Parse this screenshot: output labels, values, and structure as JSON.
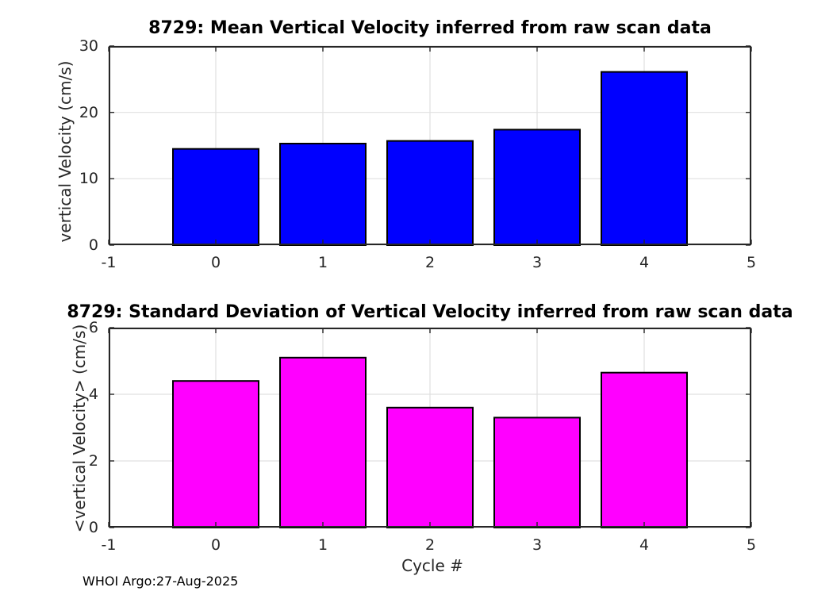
{
  "figure": {
    "xlabel": "Cycle #",
    "footer": "WHOI Argo:27-Aug-2025"
  },
  "style": {
    "grid_color": "#e0e0e0",
    "axis_color": "#262626",
    "tick_color": "#262626",
    "background": "#ffffff"
  },
  "chart_data": [
    {
      "id": "mean",
      "type": "bar",
      "title": "8729: Mean Vertical Velocity inferred from raw scan data",
      "ylabel": "vertical Velocity (cm/s)",
      "xlabel": "",
      "categories": [
        0,
        1,
        2,
        3,
        4
      ],
      "values": [
        14.5,
        15.3,
        15.7,
        17.4,
        26.1
      ],
      "bar_fill": "#0000ff",
      "bar_edge": "#000000",
      "bar_width": 0.8,
      "xlim": [
        -1,
        5
      ],
      "ylim": [
        0,
        30
      ],
      "xticks": [
        -1,
        0,
        1,
        2,
        3,
        4,
        5
      ],
      "yticks": [
        0,
        10,
        20,
        30
      ],
      "grid": true,
      "legend": "none"
    },
    {
      "id": "std",
      "type": "bar",
      "title": "8729: Standard Deviation of Vertical Velocity inferred from raw scan data",
      "ylabel": "<vertical Velocity> (cm/s)",
      "xlabel": "Cycle #",
      "categories": [
        0,
        1,
        2,
        3,
        4
      ],
      "values": [
        4.4,
        5.1,
        3.6,
        3.3,
        4.65
      ],
      "bar_fill": "#ff00ff",
      "bar_edge": "#000000",
      "bar_width": 0.8,
      "xlim": [
        -1,
        5
      ],
      "ylim": [
        0,
        6
      ],
      "xticks": [
        -1,
        0,
        1,
        2,
        3,
        4,
        5
      ],
      "yticks": [
        0,
        2,
        4,
        6
      ],
      "grid": true,
      "legend": "none"
    }
  ]
}
